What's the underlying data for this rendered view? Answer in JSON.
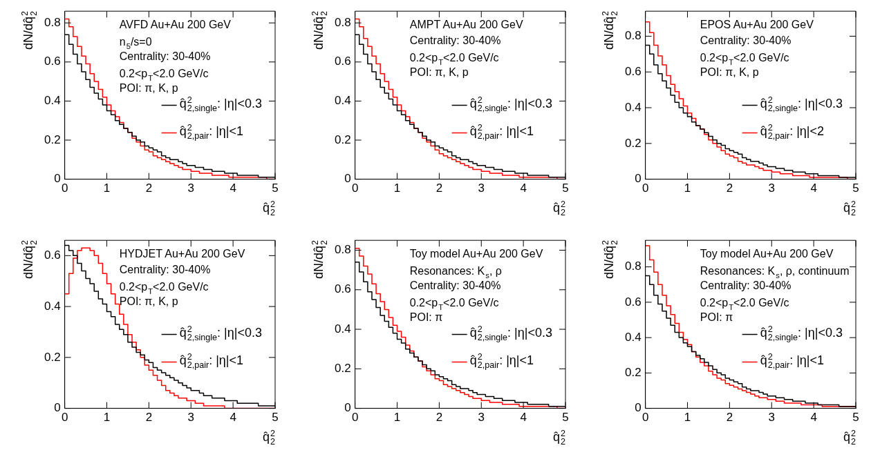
{
  "chart_data": [
    {
      "type": "histogram",
      "xlabel": "q̂$_{2}$$^{2}$",
      "ylabel": "dN/dq̂$_{2}$$^{2}$",
      "xlim": [
        0,
        5
      ],
      "xticks": [
        0,
        1,
        2,
        3,
        4,
        5
      ],
      "ylim": [
        0,
        0.86
      ],
      "yticks": [
        0,
        0.2,
        0.4,
        0.6,
        0.8
      ],
      "legend": "right",
      "annotations": [
        "AVFD Au+Au 200 GeV",
        "n$_{5}$/s=0",
        "Centrality: 30-40%",
        "0.2<p$_{T}$<2.0 GeV/c",
        "POI: π, K, p"
      ],
      "bins": [
        0,
        0.1,
        0.2,
        0.3,
        0.4,
        0.5,
        0.6,
        0.7,
        0.8,
        0.9,
        1,
        1.1,
        1.2,
        1.3,
        1.4,
        1.5,
        1.6,
        1.7,
        1.8,
        1.9,
        2,
        2.1,
        2.2,
        2.3,
        2.4,
        2.5,
        2.6,
        2.7,
        2.8,
        2.9,
        3,
        3.1,
        3.2,
        3.3,
        3.4,
        3.5,
        3.6,
        3.7,
        3.8,
        3.9,
        4,
        4.1,
        4.2,
        4.3,
        4.4,
        4.5,
        4.6,
        4.7,
        4.8,
        4.9,
        5
      ],
      "series": [
        {
          "name": "q̂$^{2}$$_{2,single}$: |η|<0.3",
          "color": "#000000",
          "values": [
            0.74,
            0.69,
            0.64,
            0.59,
            0.55,
            0.51,
            0.47,
            0.44,
            0.41,
            0.38,
            0.35,
            0.33,
            0.3,
            0.28,
            0.26,
            0.24,
            0.22,
            0.2,
            0.19,
            0.17,
            0.16,
            0.15,
            0.14,
            0.12,
            0.11,
            0.1,
            0.1,
            0.09,
            0.08,
            0.07,
            0.07,
            0.06,
            0.06,
            0.05,
            0.05,
            0.04,
            0.04,
            0.04,
            0.03,
            0.03,
            0.03,
            0.02,
            0.02,
            0.02,
            0.02,
            0.02,
            0.01,
            0.01,
            0.01,
            0.01
          ]
        },
        {
          "name": "q̂$^{2}$$_{2,pair}$: |η|<1",
          "color": "#ff0000",
          "values": [
            0.82,
            0.78,
            0.73,
            0.68,
            0.63,
            0.59,
            0.54,
            0.5,
            0.46,
            0.42,
            0.38,
            0.35,
            0.32,
            0.29,
            0.26,
            0.24,
            0.21,
            0.19,
            0.17,
            0.15,
            0.14,
            0.12,
            0.11,
            0.1,
            0.09,
            0.08,
            0.07,
            0.06,
            0.05,
            0.05,
            0.04,
            0.04,
            0.03,
            0.03,
            0.03,
            0.02,
            0.02,
            0.02,
            0.02,
            0.01,
            0.01,
            0.01,
            0.01,
            0.01,
            0.01,
            0.01,
            0.01,
            0.01,
            0.0,
            0.0
          ]
        }
      ]
    },
    {
      "type": "histogram",
      "xlabel": "q̂$_{2}$$^{2}$",
      "ylabel": "dN/dq̂$_{2}$$^{2}$",
      "xlim": [
        0,
        5
      ],
      "xticks": [
        0,
        1,
        2,
        3,
        4,
        5
      ],
      "ylim": [
        0,
        0.86
      ],
      "yticks": [
        0,
        0.2,
        0.4,
        0.6,
        0.8
      ],
      "legend": "right",
      "annotations": [
        "AMPT Au+Au 200 GeV",
        "Centrality: 30-40%",
        "0.2<p$_{T}$<2.0 GeV/c",
        "POI: π, K, p"
      ],
      "bins": [
        0,
        0.1,
        0.2,
        0.3,
        0.4,
        0.5,
        0.6,
        0.7,
        0.8,
        0.9,
        1,
        1.1,
        1.2,
        1.3,
        1.4,
        1.5,
        1.6,
        1.7,
        1.8,
        1.9,
        2,
        2.1,
        2.2,
        2.3,
        2.4,
        2.5,
        2.6,
        2.7,
        2.8,
        2.9,
        3,
        3.1,
        3.2,
        3.3,
        3.4,
        3.5,
        3.6,
        3.7,
        3.8,
        3.9,
        4,
        4.1,
        4.2,
        4.3,
        4.4,
        4.5,
        4.6,
        4.7,
        4.8,
        4.9,
        5
      ],
      "series": [
        {
          "name": "q̂$^{2}$$_{2,single}$: |η|<0.3",
          "color": "#000000",
          "values": [
            0.74,
            0.69,
            0.64,
            0.59,
            0.55,
            0.51,
            0.47,
            0.44,
            0.41,
            0.38,
            0.35,
            0.33,
            0.3,
            0.28,
            0.26,
            0.24,
            0.22,
            0.2,
            0.19,
            0.17,
            0.16,
            0.15,
            0.14,
            0.12,
            0.11,
            0.1,
            0.1,
            0.09,
            0.08,
            0.07,
            0.07,
            0.06,
            0.06,
            0.05,
            0.05,
            0.04,
            0.04,
            0.04,
            0.03,
            0.03,
            0.03,
            0.02,
            0.02,
            0.02,
            0.02,
            0.02,
            0.01,
            0.01,
            0.01,
            0.01
          ]
        },
        {
          "name": "q̂$^{2}$$_{2,pair}$: |η|<1",
          "color": "#ff0000",
          "values": [
            0.82,
            0.78,
            0.72,
            0.68,
            0.63,
            0.59,
            0.54,
            0.5,
            0.46,
            0.42,
            0.38,
            0.35,
            0.32,
            0.29,
            0.26,
            0.24,
            0.21,
            0.19,
            0.17,
            0.15,
            0.13,
            0.12,
            0.11,
            0.1,
            0.09,
            0.08,
            0.07,
            0.06,
            0.05,
            0.05,
            0.04,
            0.04,
            0.03,
            0.03,
            0.03,
            0.02,
            0.02,
            0.02,
            0.02,
            0.01,
            0.01,
            0.01,
            0.01,
            0.01,
            0.01,
            0.01,
            0.01,
            0.01,
            0.0,
            0.0
          ]
        }
      ]
    },
    {
      "type": "histogram",
      "xlabel": "q̂$_{2}$$^{2}$",
      "ylabel": "dN/dq̂$_{2}$$^{2}$",
      "xlim": [
        0,
        5
      ],
      "xticks": [
        0,
        1,
        2,
        3,
        4,
        5
      ],
      "ylim": [
        0,
        0.94
      ],
      "yticks": [
        0,
        0.2,
        0.4,
        0.6,
        0.8
      ],
      "legend": "right",
      "annotations": [
        "EPOS Au+Au 200 GeV",
        "Centrality: 30-40%",
        "0.2<p$_{T}$<2.0 GeV/c",
        "POI: π, K, p"
      ],
      "bins": [
        0,
        0.1,
        0.2,
        0.3,
        0.4,
        0.5,
        0.6,
        0.7,
        0.8,
        0.9,
        1,
        1.1,
        1.2,
        1.3,
        1.4,
        1.5,
        1.6,
        1.7,
        1.8,
        1.9,
        2,
        2.1,
        2.2,
        2.3,
        2.4,
        2.5,
        2.6,
        2.7,
        2.8,
        2.9,
        3,
        3.1,
        3.2,
        3.3,
        3.4,
        3.5,
        3.6,
        3.7,
        3.8,
        3.9,
        4,
        4.1,
        4.2,
        4.3,
        4.4,
        4.5,
        4.6,
        4.7,
        4.8,
        4.9,
        5
      ],
      "series": [
        {
          "name": "q̂$^{2}$$_{2,single}$: |η|<0.3",
          "color": "#000000",
          "values": [
            0.75,
            0.7,
            0.64,
            0.59,
            0.55,
            0.51,
            0.47,
            0.43,
            0.4,
            0.37,
            0.35,
            0.32,
            0.3,
            0.28,
            0.26,
            0.24,
            0.22,
            0.2,
            0.19,
            0.17,
            0.16,
            0.15,
            0.14,
            0.12,
            0.11,
            0.1,
            0.1,
            0.09,
            0.08,
            0.07,
            0.07,
            0.06,
            0.06,
            0.05,
            0.05,
            0.04,
            0.04,
            0.04,
            0.03,
            0.03,
            0.03,
            0.02,
            0.02,
            0.02,
            0.02,
            0.02,
            0.01,
            0.01,
            0.01,
            0.01
          ]
        },
        {
          "name": "q̂$^{2}$$_{2,pair}$: |η|<2",
          "color": "#ff0000",
          "values": [
            0.88,
            0.82,
            0.75,
            0.69,
            0.64,
            0.58,
            0.53,
            0.49,
            0.45,
            0.41,
            0.37,
            0.34,
            0.3,
            0.28,
            0.25,
            0.22,
            0.2,
            0.18,
            0.16,
            0.14,
            0.13,
            0.12,
            0.1,
            0.09,
            0.08,
            0.08,
            0.07,
            0.06,
            0.05,
            0.05,
            0.04,
            0.04,
            0.03,
            0.03,
            0.03,
            0.02,
            0.02,
            0.02,
            0.02,
            0.01,
            0.01,
            0.01,
            0.01,
            0.01,
            0.01,
            0.01,
            0.01,
            0.01,
            0.0,
            0.0
          ]
        }
      ]
    },
    {
      "type": "histogram",
      "xlabel": "q̂$_{2}$$^{2}$",
      "ylabel": "dN/dq̂$_{2}$$^{2}$",
      "xlim": [
        0,
        5
      ],
      "xticks": [
        0,
        1,
        2,
        3,
        4,
        5
      ],
      "ylim": [
        0,
        0.66
      ],
      "yticks": [
        0,
        0.2,
        0.4,
        0.6
      ],
      "legend": "right",
      "annotations": [
        "HYDJET Au+Au 200 GeV",
        "Centrality: 30-40%",
        "0.2<p$_{T}$<2.0 GeV/c",
        "POI: π, K, p"
      ],
      "bins": [
        0,
        0.1,
        0.2,
        0.3,
        0.4,
        0.5,
        0.6,
        0.7,
        0.8,
        0.9,
        1,
        1.1,
        1.2,
        1.3,
        1.4,
        1.5,
        1.6,
        1.7,
        1.8,
        1.9,
        2,
        2.1,
        2.2,
        2.3,
        2.4,
        2.5,
        2.6,
        2.7,
        2.8,
        2.9,
        3,
        3.1,
        3.2,
        3.3,
        3.4,
        3.5,
        3.6,
        3.7,
        3.8,
        3.9,
        4,
        4.1,
        4.2,
        4.3,
        4.4,
        4.5,
        4.6,
        4.7,
        4.8,
        4.9,
        5
      ],
      "series": [
        {
          "name": "q̂$^{2}$$_{2,single}$: |η|<0.3",
          "color": "#000000",
          "values": [
            0.64,
            0.62,
            0.6,
            0.57,
            0.54,
            0.51,
            0.49,
            0.46,
            0.43,
            0.41,
            0.38,
            0.36,
            0.33,
            0.31,
            0.29,
            0.26,
            0.24,
            0.22,
            0.21,
            0.19,
            0.18,
            0.16,
            0.15,
            0.14,
            0.13,
            0.12,
            0.11,
            0.1,
            0.09,
            0.08,
            0.07,
            0.07,
            0.06,
            0.05,
            0.05,
            0.04,
            0.04,
            0.04,
            0.03,
            0.03,
            0.03,
            0.02,
            0.02,
            0.02,
            0.02,
            0.02,
            0.01,
            0.01,
            0.01,
            0.01
          ]
        },
        {
          "name": "q̂$^{2}$$_{2,pair}$: |η|<1",
          "color": "#ff0000",
          "values": [
            0.45,
            0.53,
            0.59,
            0.62,
            0.63,
            0.63,
            0.62,
            0.6,
            0.57,
            0.53,
            0.49,
            0.45,
            0.41,
            0.37,
            0.33,
            0.29,
            0.26,
            0.23,
            0.2,
            0.17,
            0.15,
            0.13,
            0.11,
            0.09,
            0.07,
            0.06,
            0.05,
            0.04,
            0.04,
            0.03,
            0.03,
            0.02,
            0.02,
            0.01,
            0.01,
            0.01,
            0.01,
            0.01,
            0.0,
            0.0,
            0.0,
            0.0,
            0.0,
            0.0,
            0.0,
            0.0,
            0.0,
            0.0,
            0.0,
            0.0
          ]
        }
      ]
    },
    {
      "type": "histogram",
      "xlabel": "q̂$_{2}$$^{2}$",
      "ylabel": "dN/dq̂$_{2}$$^{2}$",
      "xlim": [
        0,
        5
      ],
      "xticks": [
        0,
        1,
        2,
        3,
        4,
        5
      ],
      "ylim": [
        0,
        0.85
      ],
      "yticks": [
        0,
        0.2,
        0.4,
        0.6,
        0.8
      ],
      "legend": "right",
      "annotations": [
        "Toy model Au+Au 200 GeV",
        "Resonances: K$_{s}$, ρ",
        "Centrality: 30-40%",
        "0.2<p$_{T}$<2.0 GeV/c",
        "POI: π"
      ],
      "bins": [
        0,
        0.1,
        0.2,
        0.3,
        0.4,
        0.5,
        0.6,
        0.7,
        0.8,
        0.9,
        1,
        1.1,
        1.2,
        1.3,
        1.4,
        1.5,
        1.6,
        1.7,
        1.8,
        1.9,
        2,
        2.1,
        2.2,
        2.3,
        2.4,
        2.5,
        2.6,
        2.7,
        2.8,
        2.9,
        3,
        3.1,
        3.2,
        3.3,
        3.4,
        3.5,
        3.6,
        3.7,
        3.8,
        3.9,
        4,
        4.1,
        4.2,
        4.3,
        4.4,
        4.5,
        4.6,
        4.7,
        4.8,
        4.9,
        5
      ],
      "series": [
        {
          "name": "q̂$^{2}$$_{2,single}$: |η|<0.3",
          "color": "#000000",
          "values": [
            0.74,
            0.69,
            0.64,
            0.59,
            0.55,
            0.51,
            0.47,
            0.44,
            0.41,
            0.38,
            0.35,
            0.33,
            0.3,
            0.28,
            0.26,
            0.24,
            0.22,
            0.2,
            0.19,
            0.17,
            0.16,
            0.15,
            0.14,
            0.12,
            0.11,
            0.1,
            0.1,
            0.09,
            0.08,
            0.07,
            0.07,
            0.06,
            0.06,
            0.05,
            0.05,
            0.04,
            0.04,
            0.04,
            0.03,
            0.03,
            0.03,
            0.02,
            0.02,
            0.02,
            0.02,
            0.02,
            0.01,
            0.01,
            0.01,
            0.01
          ]
        },
        {
          "name": "q̂$^{2}$$_{2,pair}$: |η|<1",
          "color": "#ff0000",
          "values": [
            0.81,
            0.77,
            0.72,
            0.68,
            0.63,
            0.58,
            0.54,
            0.5,
            0.46,
            0.42,
            0.39,
            0.36,
            0.32,
            0.29,
            0.26,
            0.24,
            0.21,
            0.19,
            0.17,
            0.15,
            0.14,
            0.12,
            0.11,
            0.1,
            0.09,
            0.08,
            0.07,
            0.06,
            0.05,
            0.05,
            0.04,
            0.04,
            0.03,
            0.03,
            0.03,
            0.02,
            0.02,
            0.02,
            0.02,
            0.01,
            0.01,
            0.01,
            0.01,
            0.01,
            0.01,
            0.01,
            0.01,
            0.01,
            0.0,
            0.0
          ]
        }
      ]
    },
    {
      "type": "histogram",
      "xlabel": "q̂$_{2}$$^{2}$",
      "ylabel": "dN/dq̂$_{2}$$^{2}$",
      "xlim": [
        0,
        5
      ],
      "xticks": [
        0,
        1,
        2,
        3,
        4,
        5
      ],
      "ylim": [
        0,
        0.95
      ],
      "yticks": [
        0,
        0.2,
        0.4,
        0.6,
        0.8
      ],
      "legend": "right",
      "annotations": [
        "Toy model Au+Au 200 GeV",
        "Resonances: K$_{s}$, ρ, continuum",
        "Centrality: 30-40%",
        "0.2<p$_{T}$<2.0 GeV/c",
        "POI: π"
      ],
      "bins": [
        0,
        0.1,
        0.2,
        0.3,
        0.4,
        0.5,
        0.6,
        0.7,
        0.8,
        0.9,
        1,
        1.1,
        1.2,
        1.3,
        1.4,
        1.5,
        1.6,
        1.7,
        1.8,
        1.9,
        2,
        2.1,
        2.2,
        2.3,
        2.4,
        2.5,
        2.6,
        2.7,
        2.8,
        2.9,
        3,
        3.1,
        3.2,
        3.3,
        3.4,
        3.5,
        3.6,
        3.7,
        3.8,
        3.9,
        4,
        4.1,
        4.2,
        4.3,
        4.4,
        4.5,
        4.6,
        4.7,
        4.8,
        4.9,
        5
      ],
      "series": [
        {
          "name": "q̂$^{2}$$_{2,single}$: |η|<0.3",
          "color": "#000000",
          "values": [
            0.75,
            0.7,
            0.64,
            0.59,
            0.55,
            0.51,
            0.47,
            0.43,
            0.4,
            0.37,
            0.35,
            0.32,
            0.3,
            0.28,
            0.26,
            0.24,
            0.22,
            0.2,
            0.19,
            0.17,
            0.16,
            0.15,
            0.14,
            0.12,
            0.11,
            0.1,
            0.1,
            0.09,
            0.08,
            0.07,
            0.07,
            0.06,
            0.06,
            0.05,
            0.05,
            0.04,
            0.04,
            0.04,
            0.03,
            0.03,
            0.03,
            0.02,
            0.02,
            0.02,
            0.02,
            0.02,
            0.01,
            0.01,
            0.01,
            0.01
          ]
        },
        {
          "name": "q̂$^{2}$$_{2,pair}$: |η|<1",
          "color": "#ff0000",
          "values": [
            0.92,
            0.84,
            0.77,
            0.7,
            0.64,
            0.58,
            0.53,
            0.48,
            0.43,
            0.39,
            0.36,
            0.32,
            0.29,
            0.26,
            0.24,
            0.21,
            0.19,
            0.17,
            0.16,
            0.14,
            0.13,
            0.12,
            0.11,
            0.1,
            0.09,
            0.08,
            0.07,
            0.06,
            0.06,
            0.05,
            0.05,
            0.04,
            0.04,
            0.03,
            0.03,
            0.03,
            0.03,
            0.02,
            0.02,
            0.02,
            0.02,
            0.02,
            0.01,
            0.01,
            0.01,
            0.01,
            0.01,
            0.01,
            0.01,
            0.01
          ]
        }
      ]
    }
  ]
}
